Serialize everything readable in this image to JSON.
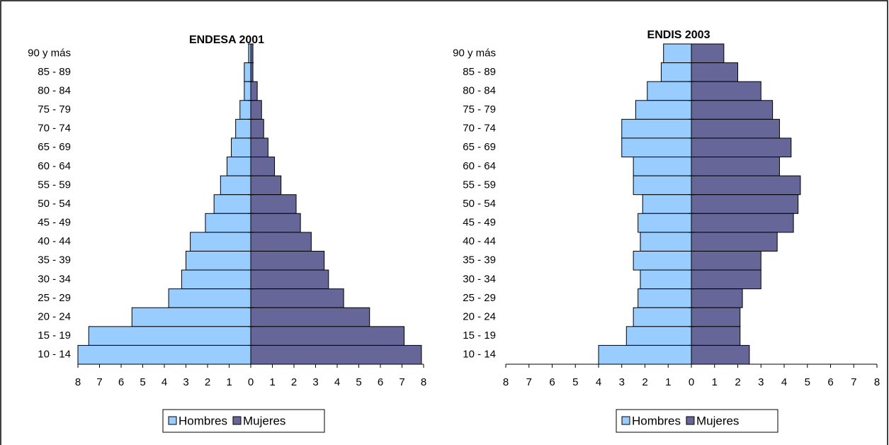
{
  "chart_data": [
    {
      "type": "pyramid",
      "title": "ENDESA 2001",
      "categories": [
        "90 y más",
        "85 - 89",
        "80 - 84",
        "75 - 79",
        "70 - 74",
        "65 - 69",
        "60 - 64",
        "55 - 59",
        "50 - 54",
        "45 - 49",
        "40 - 44",
        "35 - 39",
        "30 - 34",
        "25 - 29",
        "20 - 24",
        "15 - 19",
        "10 - 14"
      ],
      "series": [
        {
          "name": "Hombres",
          "color": "#99ccff",
          "values": [
            -0.1,
            -0.3,
            -0.3,
            -0.5,
            -0.7,
            -0.9,
            -1.1,
            -1.4,
            -1.7,
            -2.1,
            -2.8,
            -3.0,
            -3.2,
            -3.8,
            -5.5,
            -7.5,
            -8.0
          ]
        },
        {
          "name": "Mujeres",
          "color": "#666699",
          "values": [
            0.1,
            0.1,
            0.3,
            0.5,
            0.6,
            0.8,
            1.1,
            1.4,
            2.1,
            2.3,
            2.8,
            3.4,
            3.6,
            4.3,
            5.5,
            7.1,
            7.9
          ]
        }
      ],
      "xlim": [
        -8,
        8
      ],
      "xticks": [
        {
          "value": -8,
          "label": "8"
        },
        {
          "value": -7,
          "label": "7"
        },
        {
          "value": -6,
          "label": "6"
        },
        {
          "value": -5,
          "label": "5"
        },
        {
          "value": -4,
          "label": "4"
        },
        {
          "value": -3,
          "label": "3"
        },
        {
          "value": -2,
          "label": "2"
        },
        {
          "value": -1,
          "label": "1"
        },
        0,
        1,
        2,
        3,
        4,
        5,
        6,
        7,
        8
      ],
      "legend": "bottom"
    },
    {
      "type": "pyramid",
      "title": "ENDIS 2003",
      "categories": [
        "90 y más",
        "85 - 89",
        "80 - 84",
        "75 - 79",
        "70 - 74",
        "65 - 69",
        "60 - 64",
        "55 - 59",
        "50 - 54",
        "45 - 49",
        "40 - 44",
        "35 - 39",
        "30 - 34",
        "25 - 29",
        "20 - 24",
        "15 - 19",
        "10 - 14"
      ],
      "series": [
        {
          "name": "Hombres",
          "color": "#99ccff",
          "values": [
            -1.2,
            -1.3,
            -1.9,
            -2.4,
            -3.0,
            -3.0,
            -2.5,
            -2.5,
            -2.1,
            -2.3,
            -2.2,
            -2.5,
            -2.2,
            -2.3,
            -2.5,
            -2.8,
            -4.0
          ]
        },
        {
          "name": "Mujeres",
          "color": "#666699",
          "values": [
            1.4,
            2.0,
            3.0,
            3.5,
            3.8,
            4.3,
            3.8,
            4.7,
            4.6,
            4.4,
            3.7,
            3.0,
            3.0,
            2.2,
            2.1,
            2.1,
            2.5
          ]
        }
      ],
      "xlim": [
        -8,
        8
      ],
      "xticks": [
        {
          "value": -8,
          "label": "8"
        },
        {
          "value": -7,
          "label": "7"
        },
        {
          "value": -6,
          "label": "6"
        },
        {
          "value": -5,
          "label": "5"
        },
        {
          "value": -4,
          "label": "4"
        },
        {
          "value": -3,
          "label": "3"
        },
        {
          "value": -2,
          "label": "2"
        },
        {
          "value": -1,
          "label": "1"
        },
        0,
        1,
        2,
        3,
        4,
        5,
        6,
        7,
        8
      ],
      "legend": "bottom"
    }
  ]
}
